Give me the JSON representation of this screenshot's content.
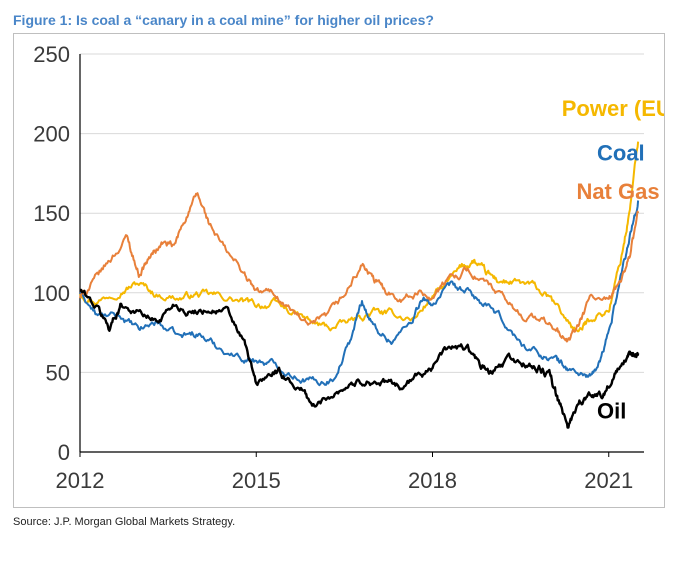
{
  "title": "Figure 1: Is coal a “canary in a coal mine” for higher oil prices?",
  "source": "Source: J.P. Morgan Global Markets Strategy.",
  "chart_data": {
    "type": "line",
    "title": "Figure 1: Is coal a “canary in a coal mine” for higher oil prices?",
    "xlabel": "",
    "ylabel": "",
    "xlim": [
      2012.0,
      2021.6
    ],
    "ylim": [
      0,
      250
    ],
    "x_ticks": [
      {
        "value": 2012,
        "label": "2012"
      },
      {
        "value": 2015,
        "label": "2015"
      },
      {
        "value": 2018,
        "label": "2018"
      },
      {
        "value": 2021,
        "label": "2021"
      }
    ],
    "y_ticks": [
      {
        "value": 0,
        "label": "0"
      },
      {
        "value": 50,
        "label": "50"
      },
      {
        "value": 100,
        "label": "100"
      },
      {
        "value": 150,
        "label": "150"
      },
      {
        "value": 200,
        "label": "200"
      },
      {
        "value": 250,
        "label": "250"
      }
    ],
    "grid": {
      "horizontal": true,
      "vertical": false
    },
    "series": [
      {
        "name": "Power (EU)",
        "label": "Power (EU)",
        "color": "#f5b800",
        "points": [
          [
            2012.0,
            100
          ],
          [
            2012.3,
            95
          ],
          [
            2012.7,
            103
          ],
          [
            2013.0,
            106
          ],
          [
            2013.3,
            99
          ],
          [
            2013.7,
            97
          ],
          [
            2014.0,
            99
          ],
          [
            2014.3,
            98
          ],
          [
            2014.7,
            95
          ],
          [
            2015.0,
            92
          ],
          [
            2015.3,
            93
          ],
          [
            2015.7,
            86
          ],
          [
            2016.0,
            80
          ],
          [
            2016.3,
            78
          ],
          [
            2016.7,
            83
          ],
          [
            2017.0,
            88
          ],
          [
            2017.3,
            86
          ],
          [
            2017.7,
            84
          ],
          [
            2018.0,
            98
          ],
          [
            2018.2,
            104
          ],
          [
            2018.5,
            116
          ],
          [
            2018.7,
            120
          ],
          [
            2018.9,
            112
          ],
          [
            2019.1,
            108
          ],
          [
            2019.4,
            106
          ],
          [
            2019.7,
            104
          ],
          [
            2020.0,
            96
          ],
          [
            2020.3,
            82
          ],
          [
            2020.5,
            75
          ],
          [
            2020.7,
            85
          ],
          [
            2021.0,
            89
          ],
          [
            2021.2,
            120
          ],
          [
            2021.35,
            150
          ],
          [
            2021.5,
            195
          ]
        ]
      },
      {
        "name": "Coal",
        "label": "Coal",
        "color": "#2170b8",
        "points": [
          [
            2012.0,
            100
          ],
          [
            2012.3,
            85
          ],
          [
            2012.7,
            85
          ],
          [
            2013.0,
            76
          ],
          [
            2013.3,
            82
          ],
          [
            2013.7,
            72
          ],
          [
            2014.0,
            75
          ],
          [
            2014.3,
            67
          ],
          [
            2014.7,
            60
          ],
          [
            2015.0,
            58
          ],
          [
            2015.3,
            55
          ],
          [
            2015.7,
            48
          ],
          [
            2016.0,
            44
          ],
          [
            2016.3,
            46
          ],
          [
            2016.6,
            70
          ],
          [
            2016.8,
            95
          ],
          [
            2017.0,
            78
          ],
          [
            2017.3,
            70
          ],
          [
            2017.6,
            80
          ],
          [
            2017.8,
            95
          ],
          [
            2018.0,
            93
          ],
          [
            2018.3,
            103
          ],
          [
            2018.6,
            100
          ],
          [
            2018.9,
            92
          ],
          [
            2019.2,
            82
          ],
          [
            2019.5,
            68
          ],
          [
            2019.8,
            62
          ],
          [
            2020.1,
            58
          ],
          [
            2020.3,
            52
          ],
          [
            2020.6,
            48
          ],
          [
            2020.8,
            50
          ],
          [
            2021.0,
            75
          ],
          [
            2021.2,
            110
          ],
          [
            2021.35,
            135
          ],
          [
            2021.5,
            158
          ]
        ]
      },
      {
        "name": "Nat Gas",
        "label": "Nat Gas",
        "color": "#e8803a",
        "points": [
          [
            2012.0,
            97
          ],
          [
            2012.2,
            105
          ],
          [
            2012.5,
            120
          ],
          [
            2012.8,
            135
          ],
          [
            2013.0,
            112
          ],
          [
            2013.2,
            123
          ],
          [
            2013.4,
            131
          ],
          [
            2013.6,
            128
          ],
          [
            2013.8,
            148
          ],
          [
            2014.0,
            161
          ],
          [
            2014.2,
            143
          ],
          [
            2014.5,
            125
          ],
          [
            2014.8,
            112
          ],
          [
            2015.0,
            100
          ],
          [
            2015.3,
            100
          ],
          [
            2015.6,
            89
          ],
          [
            2015.9,
            78
          ],
          [
            2016.2,
            84
          ],
          [
            2016.5,
            98
          ],
          [
            2016.8,
            118
          ],
          [
            2017.0,
            107
          ],
          [
            2017.2,
            102
          ],
          [
            2017.5,
            97
          ],
          [
            2017.8,
            100
          ],
          [
            2018.0,
            98
          ],
          [
            2018.3,
            109
          ],
          [
            2018.6,
            115
          ],
          [
            2018.9,
            106
          ],
          [
            2019.2,
            96
          ],
          [
            2019.5,
            86
          ],
          [
            2019.8,
            84
          ],
          [
            2020.1,
            77
          ],
          [
            2020.3,
            69
          ],
          [
            2020.5,
            80
          ],
          [
            2020.7,
            98
          ],
          [
            2021.0,
            93
          ],
          [
            2021.2,
            108
          ],
          [
            2021.35,
            122
          ],
          [
            2021.5,
            150
          ]
        ]
      },
      {
        "name": "Oil",
        "label": "Oil",
        "color": "#000000",
        "points": [
          [
            2012.0,
            102
          ],
          [
            2012.3,
            90
          ],
          [
            2012.5,
            78
          ],
          [
            2012.7,
            93
          ],
          [
            2013.0,
            88
          ],
          [
            2013.3,
            82
          ],
          [
            2013.6,
            93
          ],
          [
            2013.9,
            88
          ],
          [
            2014.2,
            90
          ],
          [
            2014.5,
            88
          ],
          [
            2014.8,
            68
          ],
          [
            2015.0,
            42
          ],
          [
            2015.3,
            50
          ],
          [
            2015.5,
            47
          ],
          [
            2015.8,
            38
          ],
          [
            2016.0,
            28
          ],
          [
            2016.3,
            37
          ],
          [
            2016.6,
            43
          ],
          [
            2016.9,
            45
          ],
          [
            2017.2,
            43
          ],
          [
            2017.5,
            41
          ],
          [
            2017.8,
            49
          ],
          [
            2018.0,
            55
          ],
          [
            2018.3,
            66
          ],
          [
            2018.6,
            65
          ],
          [
            2018.8,
            54
          ],
          [
            2019.0,
            49
          ],
          [
            2019.3,
            58
          ],
          [
            2019.6,
            55
          ],
          [
            2019.8,
            52
          ],
          [
            2020.0,
            48
          ],
          [
            2020.15,
            30
          ],
          [
            2020.3,
            17
          ],
          [
            2020.5,
            32
          ],
          [
            2020.7,
            35
          ],
          [
            2020.9,
            37
          ],
          [
            2021.1,
            48
          ],
          [
            2021.3,
            58
          ],
          [
            2021.4,
            60
          ],
          [
            2021.5,
            62
          ]
        ]
      }
    ],
    "annotations": [
      {
        "series": "Power (EU)",
        "text": "Power (EU)",
        "x": 2020.2,
        "y": 211
      },
      {
        "series": "Coal",
        "text": "Coal",
        "x": 2020.8,
        "y": 183
      },
      {
        "series": "Nat Gas",
        "text": "Nat Gas",
        "x": 2020.45,
        "y": 159
      },
      {
        "series": "Oil",
        "text": "Oil",
        "x": 2020.8,
        "y": 21
      }
    ]
  }
}
